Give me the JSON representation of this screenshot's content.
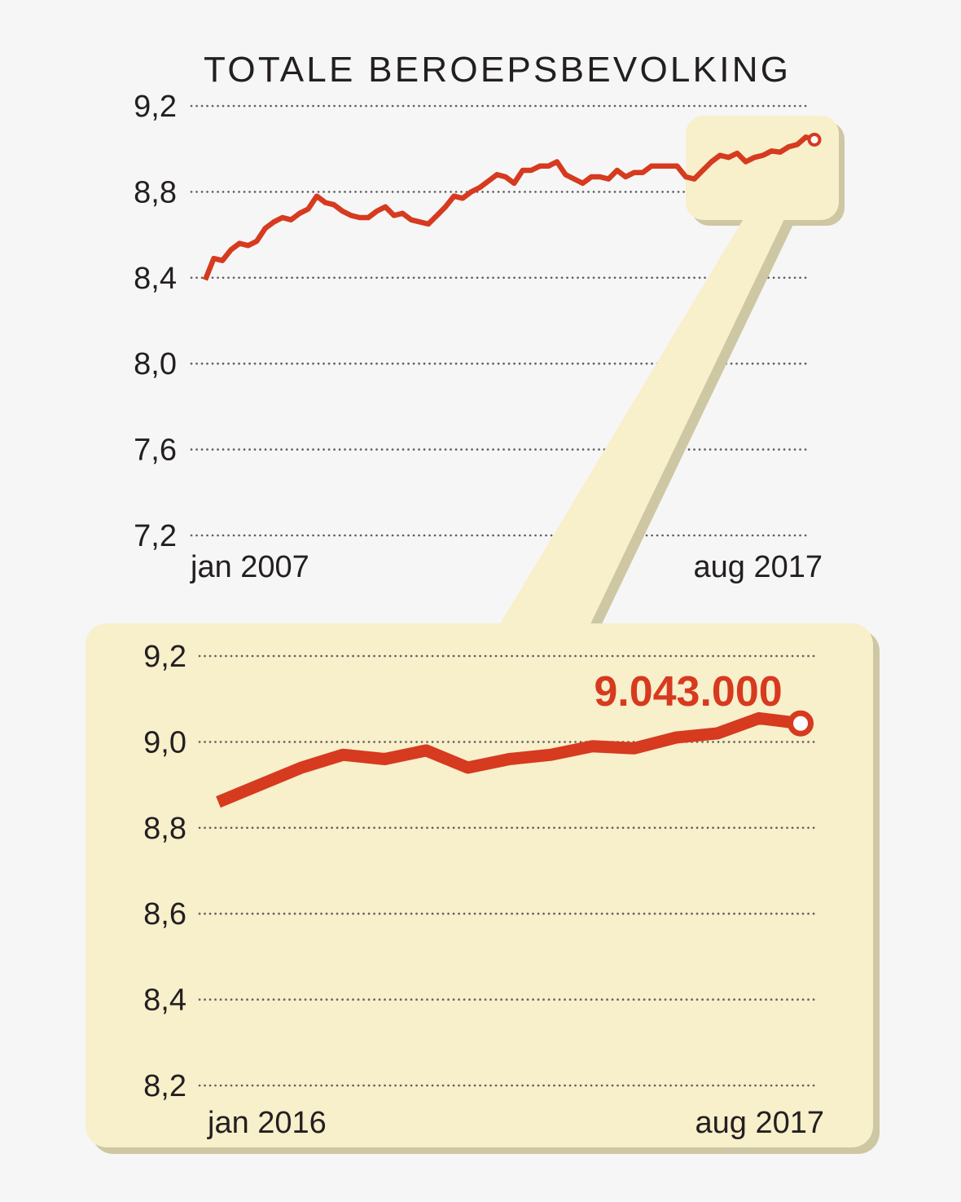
{
  "colors": {
    "background": "#f6f6f6",
    "text": "#231f20",
    "line": "#d63a1f",
    "highlight": "#f8efcb",
    "shadow": "#cec7a3",
    "grid": "#5e5e5e",
    "marker_fill": "#ffffff"
  },
  "chart_data": [
    {
      "type": "line",
      "title": "TOTALE BEROEPSBEVOLKING",
      "ylim": [
        7.2,
        9.2
      ],
      "yticks": [
        9.2,
        8.8,
        8.4,
        8.0,
        7.6,
        7.2
      ],
      "ytick_labels": [
        "9,2",
        "8,8",
        "8,4",
        "8,0",
        "7,6",
        "7,2"
      ],
      "xtick_labels": [
        "jan 2007",
        "aug 2017"
      ],
      "grid": true,
      "end_marker": true,
      "series": [
        {
          "values": [
            8.39,
            8.49,
            8.48,
            8.53,
            8.56,
            8.55,
            8.57,
            8.63,
            8.66,
            8.68,
            8.67,
            8.7,
            8.72,
            8.78,
            8.75,
            8.74,
            8.71,
            8.69,
            8.68,
            8.68,
            8.71,
            8.73,
            8.69,
            8.7,
            8.67,
            8.66,
            8.65,
            8.69,
            8.73,
            8.78,
            8.77,
            8.8,
            8.82,
            8.85,
            8.88,
            8.87,
            8.84,
            8.9,
            8.9,
            8.92,
            8.92,
            8.94,
            8.88,
            8.86,
            8.84,
            8.87,
            8.87,
            8.86,
            8.9,
            8.87,
            8.89,
            8.89,
            8.92,
            8.92,
            8.92,
            8.92,
            8.87,
            8.86,
            8.9,
            8.94,
            8.97,
            8.96,
            8.98,
            8.94,
            8.96,
            8.97,
            8.99,
            8.985,
            9.01,
            9.02,
            9.055,
            9.043
          ]
        }
      ]
    },
    {
      "type": "line",
      "ylim": [
        8.2,
        9.2
      ],
      "yticks": [
        9.2,
        9.0,
        8.8,
        8.6,
        8.4,
        8.2
      ],
      "ytick_labels": [
        "9,2",
        "9,0",
        "8,8",
        "8,6",
        "8,4",
        "8,2"
      ],
      "xtick_labels": [
        "jan 2016",
        "aug 2017"
      ],
      "grid": true,
      "end_marker": true,
      "annotation": "9.043.000",
      "series": [
        {
          "values": [
            8.86,
            8.9,
            8.94,
            8.97,
            8.96,
            8.98,
            8.94,
            8.96,
            8.97,
            8.99,
            8.985,
            9.01,
            9.02,
            9.055,
            9.043
          ]
        }
      ]
    }
  ]
}
